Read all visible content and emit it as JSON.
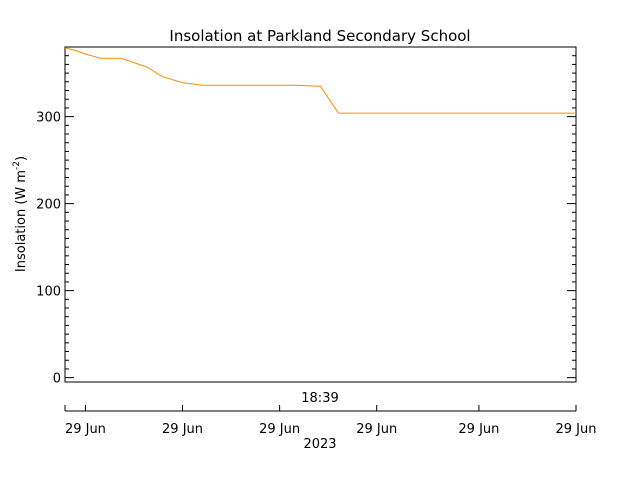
{
  "chart_data": {
    "type": "line",
    "title": "Insolation at Parkland Secondary School",
    "ylabel": {
      "prefix": "Insolation (W m",
      "sup": "-2",
      "suffix": ")"
    },
    "ylim": [
      -5,
      380
    ],
    "yticks": [
      0,
      100,
      200,
      300
    ],
    "y_minor_step": 10,
    "xlim": [
      0,
      1
    ],
    "annotation": "18:39",
    "xticks": [
      {
        "pos": 0.04,
        "label": "29 Jun"
      },
      {
        "pos": 0.23,
        "label": "29 Jun"
      },
      {
        "pos": 0.42,
        "label": "29 Jun"
      },
      {
        "pos": 0.61,
        "label": "29 Jun"
      },
      {
        "pos": 0.81,
        "label": "29 Jun"
      },
      {
        "pos": 1.0,
        "label": "29 Jun"
      }
    ],
    "year_label": "2023",
    "series": [
      {
        "color": "#ff8c00",
        "points": [
          [
            0.0,
            379
          ],
          [
            0.02,
            376
          ],
          [
            0.04,
            372
          ],
          [
            0.07,
            367
          ],
          [
            0.11,
            367
          ],
          [
            0.16,
            357
          ],
          [
            0.19,
            346
          ],
          [
            0.23,
            339
          ],
          [
            0.27,
            336
          ],
          [
            0.35,
            336
          ],
          [
            0.45,
            336
          ],
          [
            0.5,
            335
          ],
          [
            0.535,
            304
          ],
          [
            0.6,
            304
          ],
          [
            0.8,
            304
          ],
          [
            1.0,
            304
          ]
        ]
      }
    ]
  }
}
